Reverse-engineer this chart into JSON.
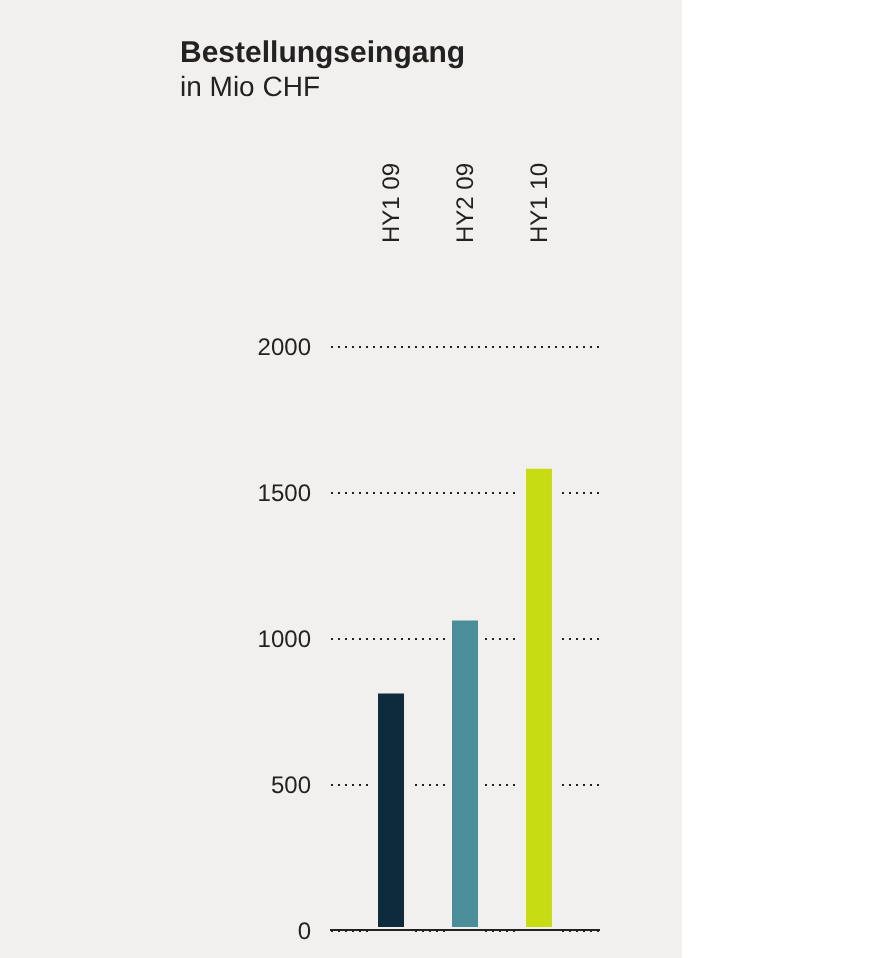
{
  "chart_data": {
    "type": "bar",
    "title": "Bestellungseingang",
    "subtitle": "in Mio CHF",
    "categories": [
      "HY1 09",
      "HY2 09",
      "HY1 10"
    ],
    "values": [
      820,
      1070,
      1590
    ],
    "colors": [
      "#0d2b3c",
      "#4a8e9a",
      "#c8dc14"
    ],
    "ylim": [
      0,
      2000
    ],
    "yticks": [
      0,
      500,
      1000,
      1500,
      2000
    ],
    "grid": "y",
    "legend": false
  }
}
